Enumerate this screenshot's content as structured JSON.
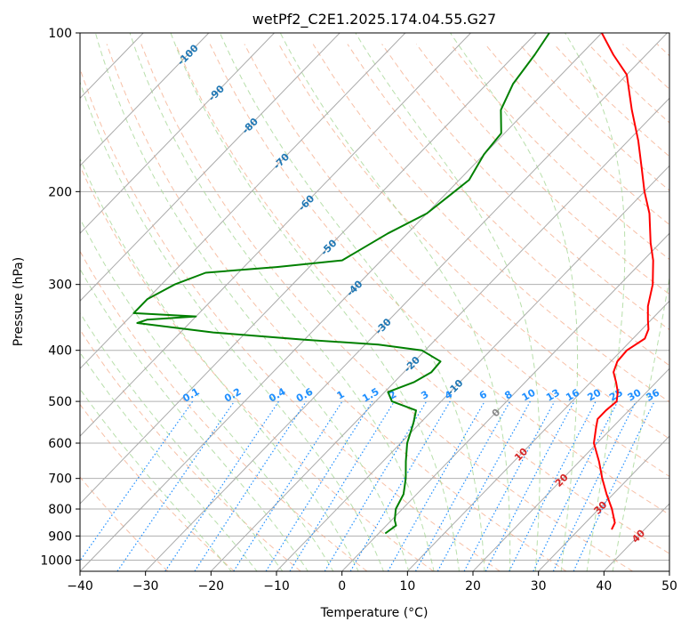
{
  "chart_data": {
    "type": "line",
    "subtype": "skew-t log-p diagram",
    "title": "wetPf2_C2E1.2025.174.04.55.G27",
    "xlabel": "Temperature (°C)",
    "ylabel": "Pressure (hPa)",
    "xlim": [
      -40,
      50
    ],
    "ylim": [
      1050,
      100
    ],
    "y_scale": "log",
    "x_ticks": [
      -40,
      -30,
      -20,
      -10,
      0,
      10,
      20,
      30,
      40,
      50
    ],
    "x_tick_labels": [
      "−40",
      "−30",
      "−20",
      "−10",
      "0",
      "10",
      "20",
      "30",
      "40",
      "50"
    ],
    "y_ticks": [
      1000,
      900,
      800,
      700,
      600,
      500,
      400,
      300,
      200,
      100
    ],
    "y_tick_labels": [
      "1000",
      "900",
      "800",
      "700",
      "600",
      "500",
      "400",
      "300",
      "200",
      "100"
    ],
    "grid": true,
    "series": [
      {
        "key": "temperature",
        "color": "#ff0000",
        "points": [
          [
            875,
            35
          ],
          [
            850,
            34.5
          ],
          [
            800,
            32
          ],
          [
            750,
            29
          ],
          [
            700,
            26
          ],
          [
            650,
            23
          ],
          [
            600,
            19.5
          ],
          [
            560,
            17.5
          ],
          [
            540,
            16.5
          ],
          [
            520,
            16.5
          ],
          [
            500,
            16.8
          ],
          [
            480,
            15.6
          ],
          [
            460,
            13.9
          ],
          [
            440,
            12
          ],
          [
            420,
            11
          ],
          [
            400,
            10.8
          ],
          [
            380,
            11.8
          ],
          [
            365,
            11
          ],
          [
            350,
            9.5
          ],
          [
            330,
            7.5
          ],
          [
            300,
            5
          ],
          [
            270,
            1.5
          ],
          [
            250,
            -1.5
          ],
          [
            220,
            -6
          ],
          [
            200,
            -10
          ],
          [
            180,
            -14
          ],
          [
            160,
            -18.5
          ],
          [
            140,
            -24
          ],
          [
            120,
            -30
          ],
          [
            110,
            -35
          ],
          [
            100,
            -40
          ]
        ]
      },
      {
        "key": "dewpoint",
        "color": "#008000",
        "points": [
          [
            890,
            1
          ],
          [
            860,
            1.5
          ],
          [
            840,
            0.5
          ],
          [
            800,
            -1
          ],
          [
            750,
            -2
          ],
          [
            700,
            -4
          ],
          [
            650,
            -6.5
          ],
          [
            600,
            -9
          ],
          [
            550,
            -11
          ],
          [
            520,
            -12.5
          ],
          [
            500,
            -17.5
          ],
          [
            480,
            -19.5
          ],
          [
            460,
            -17
          ],
          [
            440,
            -15.8
          ],
          [
            420,
            -16
          ],
          [
            400,
            -20.5
          ],
          [
            390,
            -28
          ],
          [
            382,
            -40
          ],
          [
            370,
            -55
          ],
          [
            355,
            -68
          ],
          [
            350,
            -67
          ],
          [
            345,
            -60
          ],
          [
            340,
            -70
          ],
          [
            320,
            -70
          ],
          [
            300,
            -68
          ],
          [
            285,
            -65
          ],
          [
            278,
            -55
          ],
          [
            270,
            -46
          ],
          [
            260,
            -45
          ],
          [
            240,
            -43
          ],
          [
            220,
            -40
          ],
          [
            200,
            -39
          ],
          [
            190,
            -38.5
          ],
          [
            170,
            -40
          ],
          [
            155,
            -40.5
          ],
          [
            140,
            -44
          ],
          [
            125,
            -46
          ],
          [
            110,
            -47
          ],
          [
            100,
            -48
          ]
        ]
      }
    ],
    "reference_lines": {
      "isotherms_color": "#aaaaaa",
      "dry_adiabats_color": "#f4a582",
      "moist_adiabats_color": "#a6d796",
      "mixing_ratio_color": "#1f8fff",
      "isotherm_labels": [
        "-100",
        "-90",
        "-80",
        "-70",
        "-60",
        "-50",
        "-40",
        "-30",
        "-20",
        "-10",
        "0",
        "10",
        "20",
        "30",
        "40"
      ],
      "isotherm_label_values": [
        -100,
        -90,
        -80,
        -70,
        -60,
        -50,
        -40,
        -30,
        -20,
        -10,
        0,
        10,
        20,
        30,
        40
      ],
      "mixing_ratio_labels": [
        "0.1",
        "0.2",
        "0.4",
        "0.6",
        "1",
        "1.5",
        "2",
        "3",
        "4",
        "6",
        "8",
        "10",
        "13",
        "16",
        "20",
        "25",
        "30",
        "36"
      ],
      "mixing_ratio_values": [
        0.1,
        0.2,
        0.4,
        0.6,
        1,
        1.5,
        2,
        3,
        4,
        6,
        8,
        10,
        13,
        16,
        20,
        25,
        30,
        36
      ],
      "mixing_ratio_label_pressure": 500
    }
  }
}
